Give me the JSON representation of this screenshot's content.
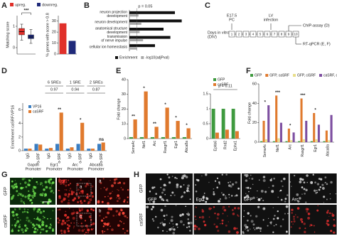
{
  "panel_labels": [
    "A",
    "B",
    "C",
    "D",
    "E",
    "F",
    "G",
    "H"
  ],
  "chart_data": [
    {
      "type": "box",
      "ylabel": "Matching score",
      "ylim": [
        -0.3,
        1.5
      ],
      "yticks": [
        0,
        1
      ],
      "series": [
        {
          "name": "upreg.",
          "color": "#e0302a",
          "whislo": 0.35,
          "q1": 0.6,
          "median": 0.75,
          "q3": 0.9,
          "whishi": 1.1
        },
        {
          "name": "downreg.",
          "color": "#1f2a7a",
          "whislo": 0.2,
          "q1": 0.42,
          "median": 0.5,
          "q3": 0.6,
          "whishi": 0.85
        }
      ],
      "significance": "***"
    },
    {
      "type": "bar",
      "ylabel": "% genes with score > 0.8",
      "ylim": [
        0,
        35
      ],
      "yticks": [
        0,
        10,
        20,
        30
      ],
      "values": [
        28,
        12
      ],
      "colors": [
        "#e0302a",
        "#1f2a7a"
      ]
    },
    {
      "type": "barh",
      "xlim": [
        0,
        10
      ],
      "categories": [
        [
          "neuron projection",
          "development"
        ],
        [
          "neuron development"
        ],
        [
          "anatomical structure",
          "development"
        ],
        [
          "transmission",
          "of nerve impulse"
        ],
        [
          "cellular ion homeostasis"
        ]
      ],
      "series": [
        {
          "name": "Enrichment",
          "color": "#111111",
          "values": [
            8,
            9.2,
            6,
            7.2,
            4.5
          ]
        },
        {
          "name": "-log10(adjPval)",
          "color": "#a8a8a8",
          "values": [
            1.6,
            2.1,
            1.8,
            2.4,
            1.3
          ]
        }
      ],
      "threshold": {
        "value": 1.3,
        "label": "p = 0.05"
      }
    },
    {
      "type": "bar",
      "ylabel": "Enrichment caSRF/VP16",
      "ylim": [
        0,
        7
      ],
      "yticks": [
        0,
        2,
        4,
        6
      ],
      "categories": [
        "IgG",
        "α-SRF",
        "IgG",
        "α-SRF",
        "IgG",
        "α-SRF",
        "IgG",
        "α-SRF"
      ],
      "groups": [
        [
          "Gapdh",
          "Promoter"
        ],
        [
          "Egr1",
          "Promoter"
        ],
        [
          "Arc",
          "Promoter"
        ],
        [
          "Abca8a",
          "Promoter"
        ]
      ],
      "sre_headers": [
        null,
        {
          "label": "6 SREs",
          "score": 0.97
        },
        {
          "label": "1 SRE",
          "score": 0.94
        },
        {
          "label": "2 SREs",
          "score": 0.87
        }
      ],
      "series": [
        {
          "name": "VP16",
          "color": "#3a7ec2",
          "values": [
            0.3,
            1,
            0.3,
            1,
            0.3,
            1,
            0.3,
            1
          ]
        },
        {
          "name": "caSRF",
          "color": "#e07a2e",
          "values": [
            0.3,
            0.9,
            0.4,
            5.6,
            0.5,
            4.1,
            0.3,
            1.2
          ]
        }
      ],
      "significance": [
        null,
        null,
        null,
        "**",
        null,
        "*",
        null,
        "ns"
      ]
    },
    {
      "type": "bar",
      "ylabel": "Fold change",
      "ylim": [
        0,
        40
      ],
      "yticks": [
        0,
        10,
        20,
        30,
        40
      ],
      "categories": [
        "Sema4c",
        "Nef1",
        "Arc",
        "Rasgrf1",
        "Egr1",
        "Abca8a"
      ],
      "series": [
        {
          "color": "#3f9a3f",
          "values": [
            1,
            1,
            1,
            1,
            1,
            1
          ]
        },
        {
          "color": "#e07a2e",
          "values": [
            13,
            32,
            8,
            21,
            12,
            7
          ]
        }
      ],
      "significance": [
        "**",
        "*",
        "**",
        "*",
        "*",
        "*"
      ]
    },
    {
      "type": "bar",
      "ylim": [
        0,
        1.5
      ],
      "yticks": [
        0,
        0.5,
        1,
        1.5
      ],
      "categories": [
        "Ephb6",
        "Rnd2",
        "Ephx1"
      ],
      "series": [
        {
          "name": "GFP",
          "color": "#3f9a3f",
          "values": [
            1,
            1,
            1
          ]
        },
        {
          "name": "caSRF",
          "color": "#e07a2e",
          "values": [
            0.2,
            0.3,
            0.25
          ]
        }
      ],
      "note": "p = 0.11"
    },
    {
      "type": "bar",
      "ylabel": "Fold change",
      "ylim": [
        0,
        60
      ],
      "yticks": [
        0,
        20,
        40,
        60
      ],
      "categories": [
        "Sema4c",
        "Nef1",
        "Arc",
        "Rasgrf1",
        "Egr1",
        "Abca8a"
      ],
      "series": [
        {
          "name": "GFP",
          "color": "#3f9a3f",
          "values": [
            1,
            1,
            1,
            1,
            1,
            1
          ]
        },
        {
          "name": "GFP, caSRF",
          "color": "#e07a2e",
          "values": [
            22,
            48,
            14,
            45,
            30,
            12
          ]
        },
        {
          "name": "GFP, ciSRF",
          "color": "#e8de8a",
          "values": [
            3,
            4,
            2,
            3,
            3,
            2
          ]
        },
        {
          "name": "caSRF, ciSRF",
          "color": "#7d4ea0",
          "values": [
            38,
            20,
            10,
            22,
            18,
            28
          ]
        }
      ],
      "significance": [
        "*",
        "***",
        "*",
        "***",
        "*",
        null
      ]
    }
  ],
  "diagram": {
    "label": [
      "Days in vitro",
      "(DIV)"
    ],
    "start": [
      "E17.5",
      "PC"
    ],
    "infection": [
      "LV",
      "infection"
    ],
    "days": [
      "1",
      "2",
      "3",
      "4",
      "5",
      "6",
      "7",
      "8",
      "9",
      "10"
    ],
    "outputs": [
      "ChIP-assay (D)",
      "RT-qPCR (E, F)"
    ]
  },
  "micrographs": {
    "G": {
      "rows": [
        "GFP",
        "caSRF"
      ],
      "column": "Egr1",
      "insets": [
        "a",
        "b"
      ]
    },
    "H": {
      "rows": [
        "GFP",
        "caSRF"
      ],
      "columns": [
        "GFP",
        "Egr1",
        "GFP",
        "Arc"
      ]
    }
  }
}
